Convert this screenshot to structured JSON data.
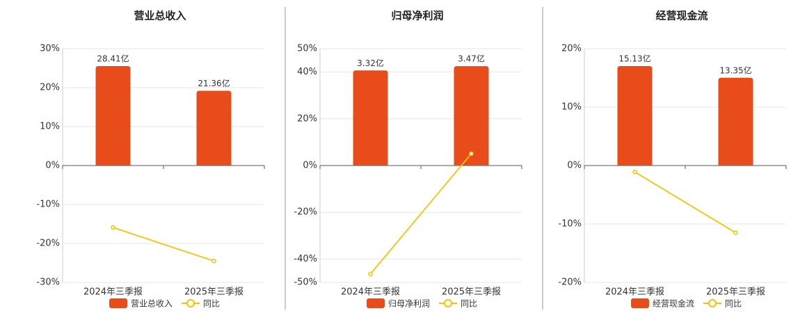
{
  "chart_data": [
    {
      "type": "bar",
      "title": "营业总收入",
      "categories": [
        "2024年三季报",
        "2025年三季报"
      ],
      "series": [
        {
          "name": "营业总收入",
          "type": "bar",
          "color": "#e84c1a",
          "axis": "y2",
          "values": [
            28.41,
            21.36
          ],
          "value_labels": [
            "28.41亿",
            "21.36亿"
          ]
        },
        {
          "name": "同比",
          "type": "line",
          "color": "#f2c500",
          "values": [
            -15.9,
            -24.5
          ]
        }
      ],
      "ylim": [
        -30,
        30
      ],
      "yticks": [
        {
          "value": -30,
          "label": "-30%"
        },
        {
          "value": -20,
          "label": "-20%"
        },
        {
          "value": -10,
          "label": "-10%"
        },
        {
          "value": 0,
          "label": "0%"
        },
        {
          "value": 10,
          "label": "10%"
        },
        {
          "value": 20,
          "label": "20%"
        },
        {
          "value": 30,
          "label": "30%"
        }
      ],
      "y2lim": [
        -33.38,
        33.38
      ],
      "grid": true
    },
    {
      "type": "bar",
      "title": "归母净利润",
      "categories": [
        "2024年三季报",
        "2025年三季报"
      ],
      "series": [
        {
          "name": "归母净利润",
          "type": "bar",
          "color": "#e84c1a",
          "axis": "y2",
          "values": [
            3.32,
            3.47
          ],
          "value_labels": [
            "3.32亿",
            "3.47亿"
          ]
        },
        {
          "name": "同比",
          "type": "line",
          "color": "#f2c500",
          "values": [
            -46.4,
            5.1
          ]
        }
      ],
      "ylim": [
        -50,
        50
      ],
      "yticks": [
        {
          "value": -50,
          "label": "-50%"
        },
        {
          "value": -40,
          "label": "-40%"
        },
        {
          "value": -20,
          "label": "-20%"
        },
        {
          "value": 0,
          "label": "0%"
        },
        {
          "value": 20,
          "label": "20%"
        },
        {
          "value": 40,
          "label": "40%"
        },
        {
          "value": 50,
          "label": "50%"
        }
      ],
      "y2lim": [
        -4.08,
        4.08
      ],
      "grid": true
    },
    {
      "type": "bar",
      "title": "经营现金流",
      "categories": [
        "2024年三季报",
        "2025年三季报"
      ],
      "series": [
        {
          "name": "经营现金流",
          "type": "bar",
          "color": "#e84c1a",
          "axis": "y2",
          "values": [
            15.13,
            13.35
          ],
          "value_labels": [
            "15.13亿",
            "13.35亿"
          ]
        },
        {
          "name": "同比",
          "type": "line",
          "color": "#f2c500",
          "values": [
            -1.1,
            -11.5
          ]
        }
      ],
      "ylim": [
        -20,
        20
      ],
      "yticks": [
        {
          "value": -20,
          "label": "-20%"
        },
        {
          "value": -10,
          "label": "-10%"
        },
        {
          "value": 0,
          "label": "0%"
        },
        {
          "value": 10,
          "label": "10%"
        },
        {
          "value": 20,
          "label": "20%"
        }
      ],
      "y2lim": [
        -17.77,
        17.77
      ],
      "grid": true
    }
  ]
}
